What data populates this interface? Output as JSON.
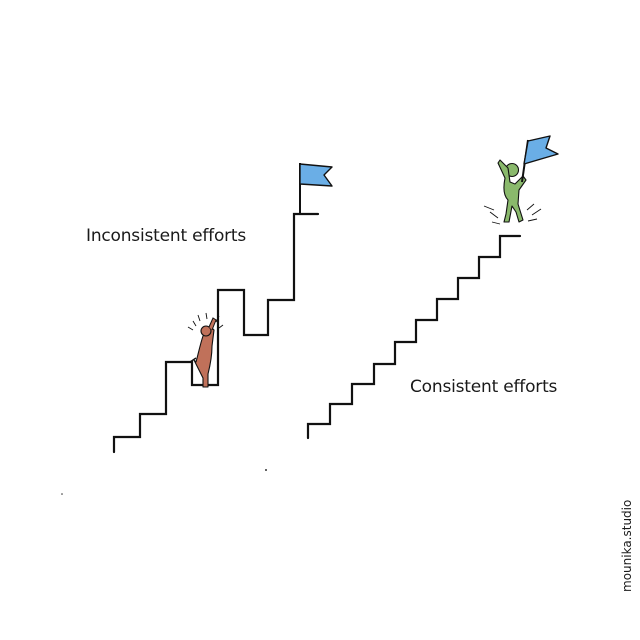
{
  "labels": {
    "inconsistent": "Inconsistent efforts",
    "consistent": "Consistent efforts"
  },
  "watermark": "mounika.studio",
  "colors": {
    "line": "#111111",
    "flag": "#6aaee6",
    "figure_inconsistent": "#c0715a",
    "figure_consistent": "#8ab96c"
  }
}
